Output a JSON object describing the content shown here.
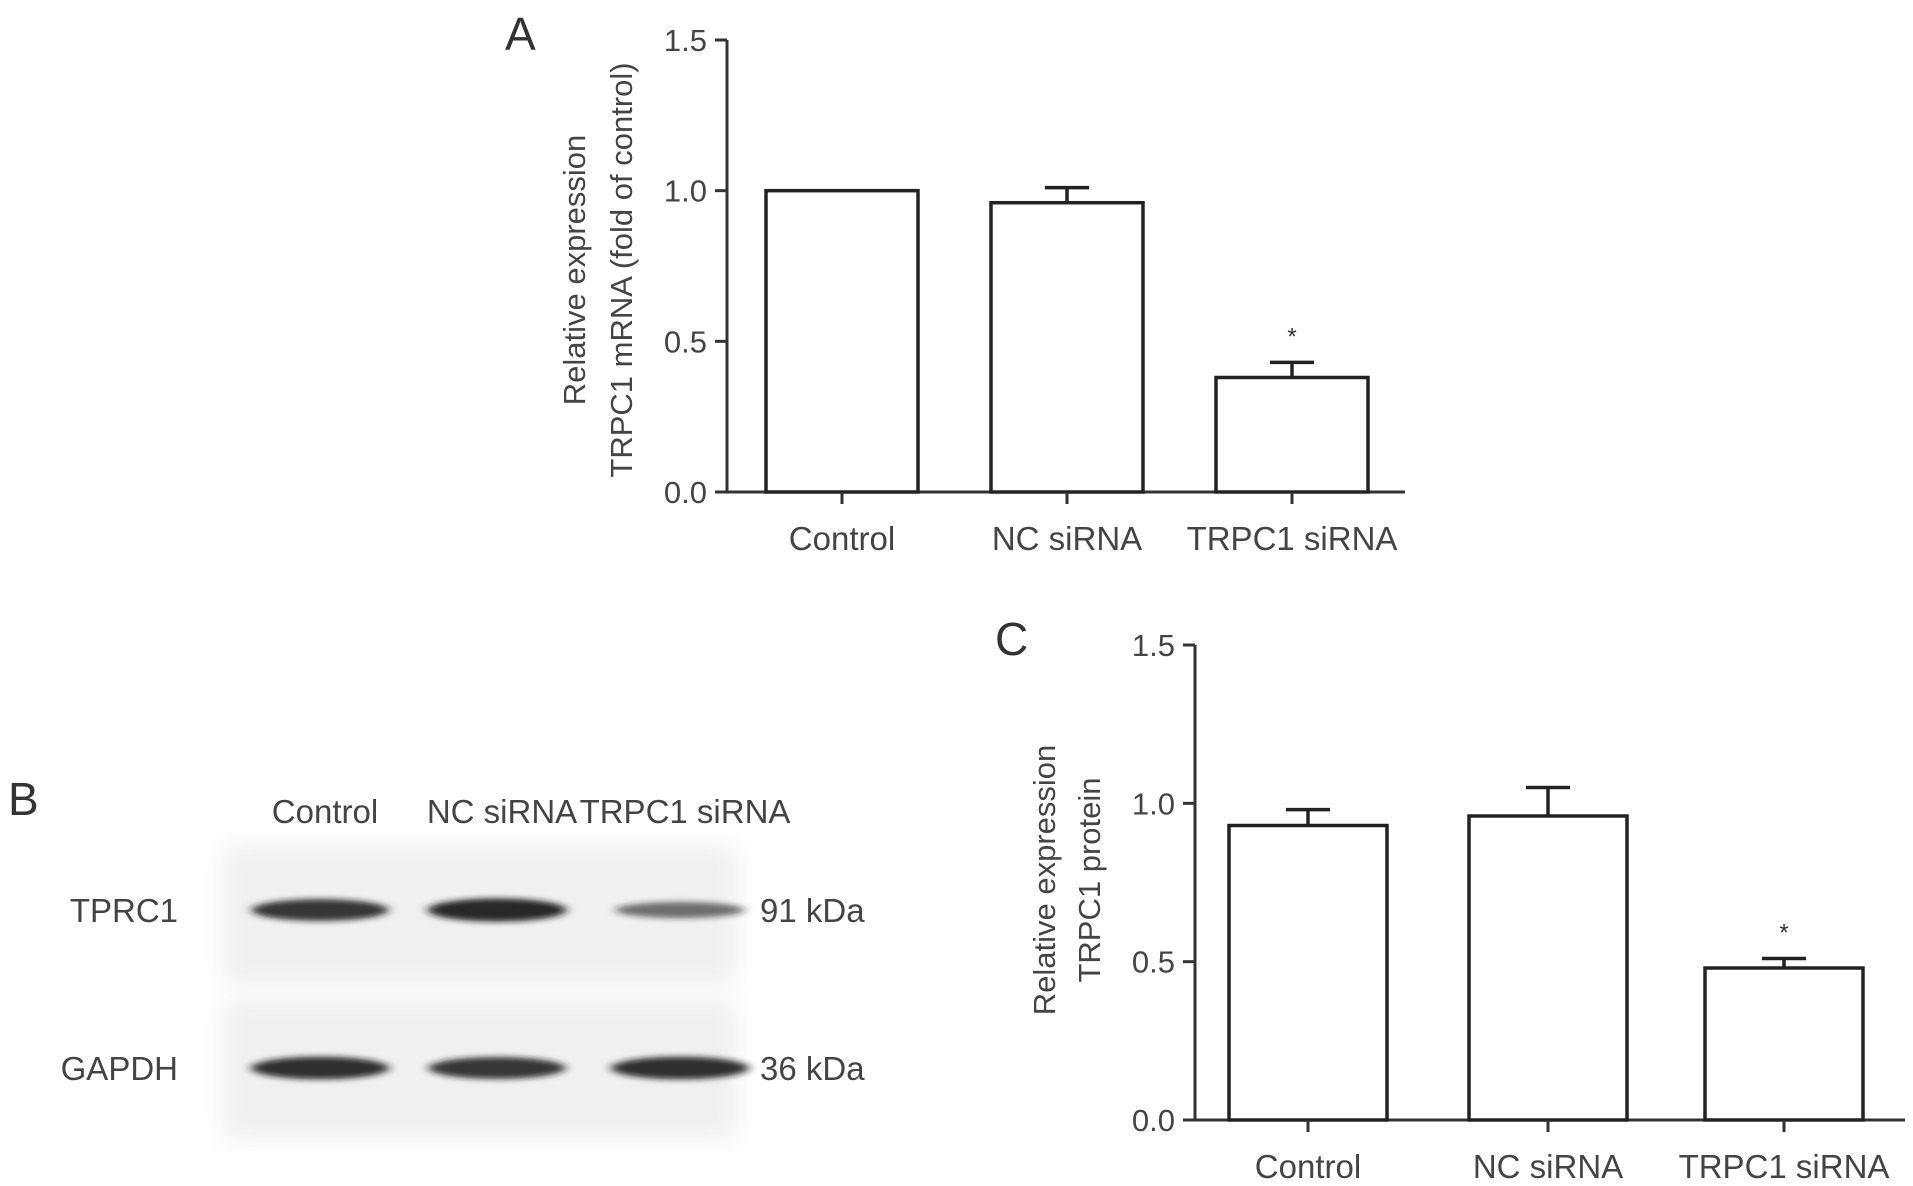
{
  "panels": {
    "a": {
      "letter": "A"
    },
    "b": {
      "letter": "B"
    },
    "c": {
      "letter": "C"
    }
  },
  "chart_data": [
    {
      "panel": "A",
      "type": "bar",
      "categories": [
        "Control",
        "NC siRNA",
        "TRPC1 siRNA"
      ],
      "values": [
        1.0,
        0.96,
        0.38
      ],
      "errors": [
        0.0,
        0.05,
        0.05
      ],
      "significance": [
        "",
        "",
        "*"
      ],
      "ylabel_line1": "Relative expression",
      "ylabel_line2": "TRPC1 mRNA (fold of control)",
      "ylim": [
        0,
        1.5
      ],
      "yticks": [
        "0.0",
        "0.5",
        "1.0",
        "1.5"
      ],
      "bar_fill": "#ffffff",
      "bar_stroke": "#222222",
      "grid": false
    },
    {
      "panel": "C",
      "type": "bar",
      "categories": [
        "Control",
        "NC siRNA",
        "TRPC1 siRNA"
      ],
      "values": [
        0.93,
        0.96,
        0.48
      ],
      "errors": [
        0.05,
        0.09,
        0.03
      ],
      "significance": [
        "",
        "",
        "*"
      ],
      "ylabel_line1": "Relative expression",
      "ylabel_line2": "TRPC1 protein",
      "ylim": [
        0,
        1.5
      ],
      "yticks": [
        "0.0",
        "0.5",
        "1.0",
        "1.5"
      ],
      "bar_fill": "#ffffff",
      "bar_stroke": "#222222",
      "grid": false
    }
  ],
  "blot": {
    "lanes": [
      "Control",
      "NC siRNA",
      "TRPC1 siRNA"
    ],
    "rows": [
      {
        "name": "TPRC1",
        "size": "91 kDa",
        "intensities": [
          0.85,
          0.95,
          0.45
        ]
      },
      {
        "name": "GAPDH",
        "size": "36 kDa",
        "intensities": [
          0.9,
          0.85,
          0.9
        ]
      }
    ],
    "band_color": "#1a1a1a",
    "membrane_color": "#f0f0f0"
  }
}
